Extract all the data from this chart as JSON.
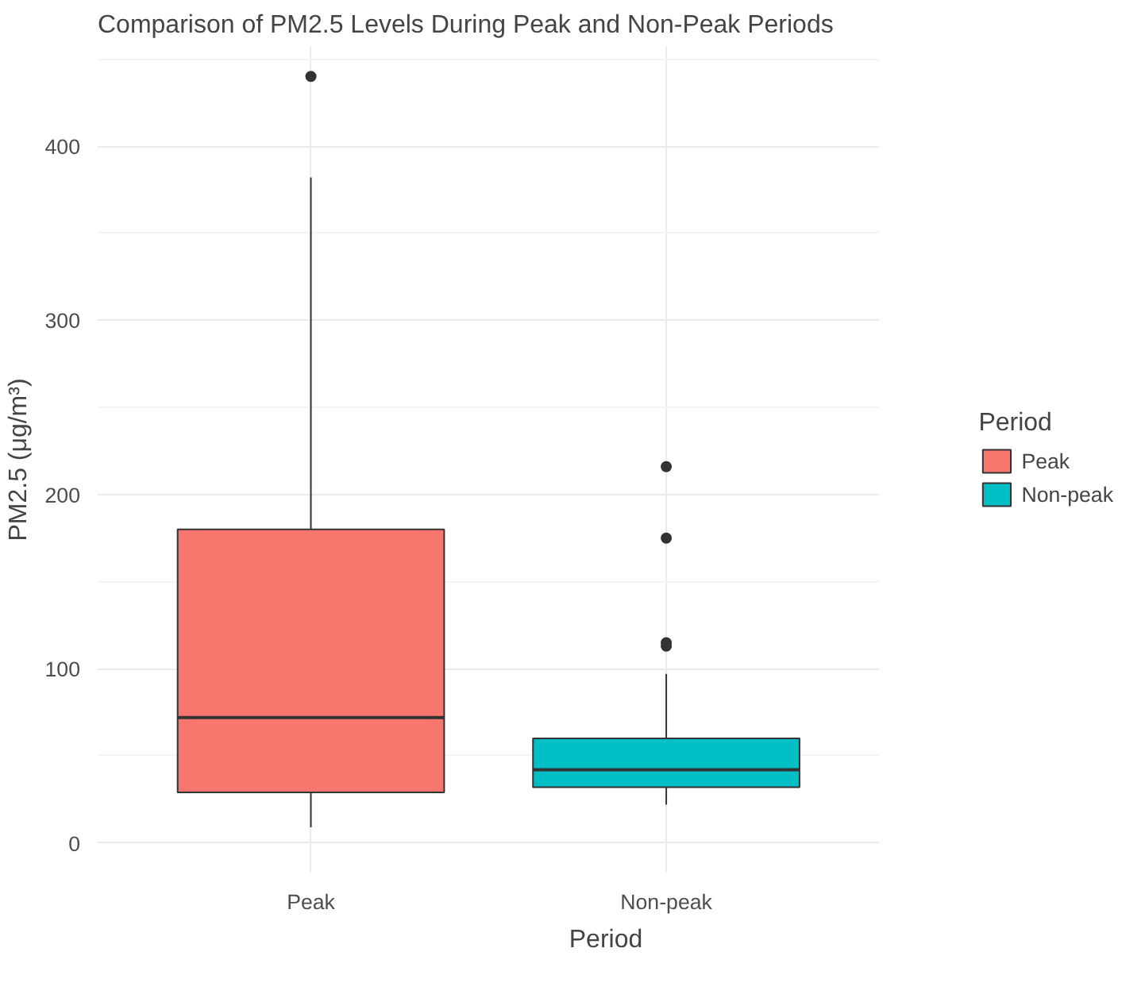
{
  "chart_data": {
    "type": "box",
    "title": "Comparison of PM2.5 Levels During Peak and Non-Peak Periods",
    "xlabel": "Period",
    "ylabel": "PM2.5 (μg/m³)",
    "legend_title": "Period",
    "categories": [
      "Peak",
      "Non-peak"
    ],
    "series": [
      {
        "name": "Peak",
        "color": "#f8766d",
        "boxes": [
          {
            "low": 9,
            "q1": 29,
            "median": 72,
            "q3": 180,
            "high": 382,
            "outliers": [
              440
            ]
          },
          null
        ]
      },
      {
        "name": "Non-peak",
        "color": "#00bfc4",
        "boxes": [
          null,
          {
            "low": 22,
            "q1": 32,
            "median": 42,
            "q3": 60,
            "high": 97,
            "outliers": [
              113,
              115,
              175,
              216
            ]
          }
        ]
      }
    ],
    "ylim": [
      -17,
      457
    ],
    "yticks": [
      0,
      100,
      200,
      300,
      400
    ],
    "grid": true,
    "legend": "right"
  }
}
